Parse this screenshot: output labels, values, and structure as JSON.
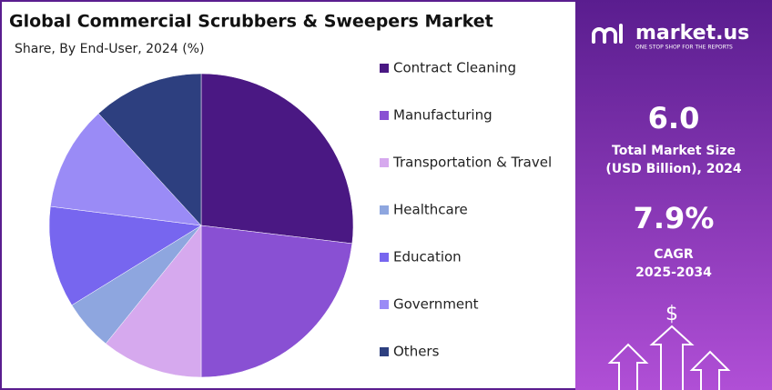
{
  "chart_data": {
    "type": "pie",
    "title": "Global Commercial Scrubbers & Sweepers Market",
    "subtitle": "Share, By End-User, 2024 (%)",
    "series": [
      {
        "name": "Contract Cleaning",
        "color": "#4a1883",
        "values": [
          26.9
        ]
      },
      {
        "name": "Manufacturing",
        "color": "#8950d3",
        "values": [
          23.1
        ]
      },
      {
        "name": "Transportation & Travel",
        "color": "#d6a9ee",
        "values": [
          10.8
        ]
      },
      {
        "name": "Healthcare",
        "color": "#8ea6df",
        "values": [
          5.4
        ]
      },
      {
        "name": "Education",
        "color": "#7766ef",
        "values": [
          10.8
        ]
      },
      {
        "name": "Government",
        "color": "#9a8bf6",
        "values": [
          11.2
        ]
      },
      {
        "name": "Others",
        "color": "#2d3f7f",
        "values": [
          11.8
        ]
      }
    ]
  },
  "panel": {
    "brand": "market.us",
    "tagline": "ONE STOP SHOP FOR THE REPORTS",
    "size_value": "6.0",
    "size_label_1": "Total Market Size",
    "size_label_2": "(USD Billion), 2024",
    "cagr_value": "7.9%",
    "cagr_label_1": "CAGR",
    "cagr_label_2": "2025-2034"
  }
}
